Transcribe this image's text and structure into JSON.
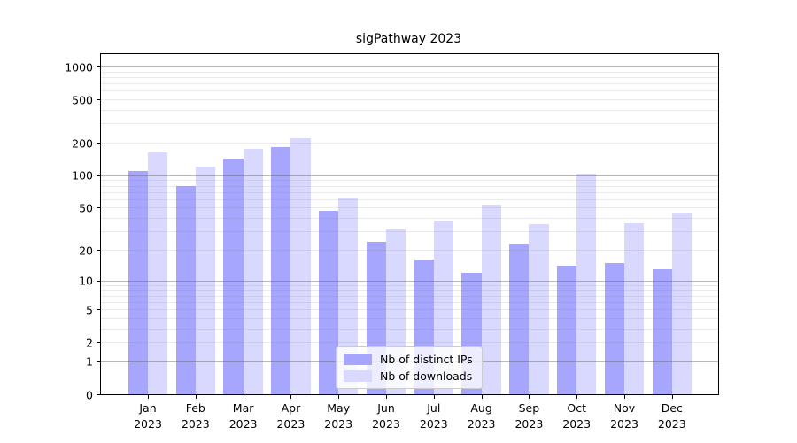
{
  "chart_data": {
    "type": "bar",
    "title": "sigPathway 2023",
    "categories": [
      "Jan",
      "Feb",
      "Mar",
      "Apr",
      "May",
      "Jun",
      "Jul",
      "Aug",
      "Sep",
      "Oct",
      "Nov",
      "Dec"
    ],
    "category_year": "2023",
    "series": [
      {
        "name": "Nb of distinct IPs",
        "color": "#a6a6ff",
        "values": [
          110,
          79,
          143,
          183,
          47,
          24,
          16,
          12,
          23,
          14,
          15,
          13
        ]
      },
      {
        "name": "Nb of downloads",
        "color": "#d9d9ff",
        "values": [
          164,
          120,
          175,
          220,
          61,
          31,
          38,
          53,
          35,
          103,
          36,
          45
        ]
      }
    ],
    "y_scale": "log1p",
    "y_ticks": [
      0,
      1,
      2,
      5,
      10,
      20,
      50,
      100,
      200,
      500,
      1000
    ],
    "ylim": [
      0,
      1300
    ],
    "grid": {
      "major_at": [
        1,
        10,
        100,
        1000
      ],
      "minor": "log minor lines (2-9 per decade)"
    },
    "legend": {
      "position": "inside-bottom-center",
      "labels": [
        "Nb of distinct IPs",
        "Nb of downloads"
      ]
    }
  }
}
